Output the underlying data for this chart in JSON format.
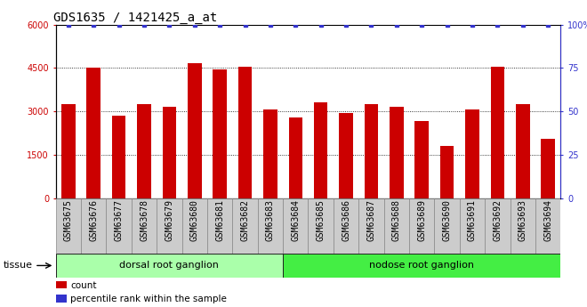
{
  "title": "GDS1635 / 1421425_a_at",
  "categories": [
    "GSM63675",
    "GSM63676",
    "GSM63677",
    "GSM63678",
    "GSM63679",
    "GSM63680",
    "GSM63681",
    "GSM63682",
    "GSM63683",
    "GSM63684",
    "GSM63685",
    "GSM63686",
    "GSM63687",
    "GSM63688",
    "GSM63689",
    "GSM63690",
    "GSM63691",
    "GSM63692",
    "GSM63693",
    "GSM63694"
  ],
  "bar_values": [
    3250,
    4500,
    2850,
    3250,
    3150,
    4650,
    4450,
    4550,
    3050,
    2800,
    3300,
    2950,
    3250,
    3150,
    2650,
    1800,
    3050,
    4550,
    3250,
    2050
  ],
  "percentile_values": [
    100,
    100,
    100,
    100,
    100,
    100,
    100,
    100,
    100,
    100,
    100,
    100,
    100,
    100,
    100,
    100,
    100,
    100,
    100,
    100
  ],
  "bar_color": "#cc0000",
  "percentile_color": "#3333cc",
  "ylim_left": [
    0,
    6000
  ],
  "ylim_right": [
    0,
    100
  ],
  "yticks_left": [
    0,
    1500,
    3000,
    4500,
    6000
  ],
  "ytick_labels_left": [
    "0",
    "1500",
    "3000",
    "4500",
    "6000"
  ],
  "yticks_right": [
    0,
    25,
    50,
    75,
    100
  ],
  "ytick_labels_right": [
    "0",
    "25",
    "50",
    "75",
    "100%"
  ],
  "tissue_groups": [
    {
      "label": "dorsal root ganglion",
      "start": 0,
      "end": 9,
      "color": "#aaffaa"
    },
    {
      "label": "nodose root ganglion",
      "start": 9,
      "end": 20,
      "color": "#44ee44"
    }
  ],
  "tissue_label": "tissue",
  "legend_items": [
    {
      "label": "count",
      "color": "#cc0000"
    },
    {
      "label": "percentile rank within the sample",
      "color": "#3333cc"
    }
  ],
  "plot_bg": "#ffffff",
  "xtick_bg": "#cccccc",
  "grid_color": "#000000",
  "title_fontsize": 10,
  "tick_fontsize": 7,
  "bar_width": 0.55
}
